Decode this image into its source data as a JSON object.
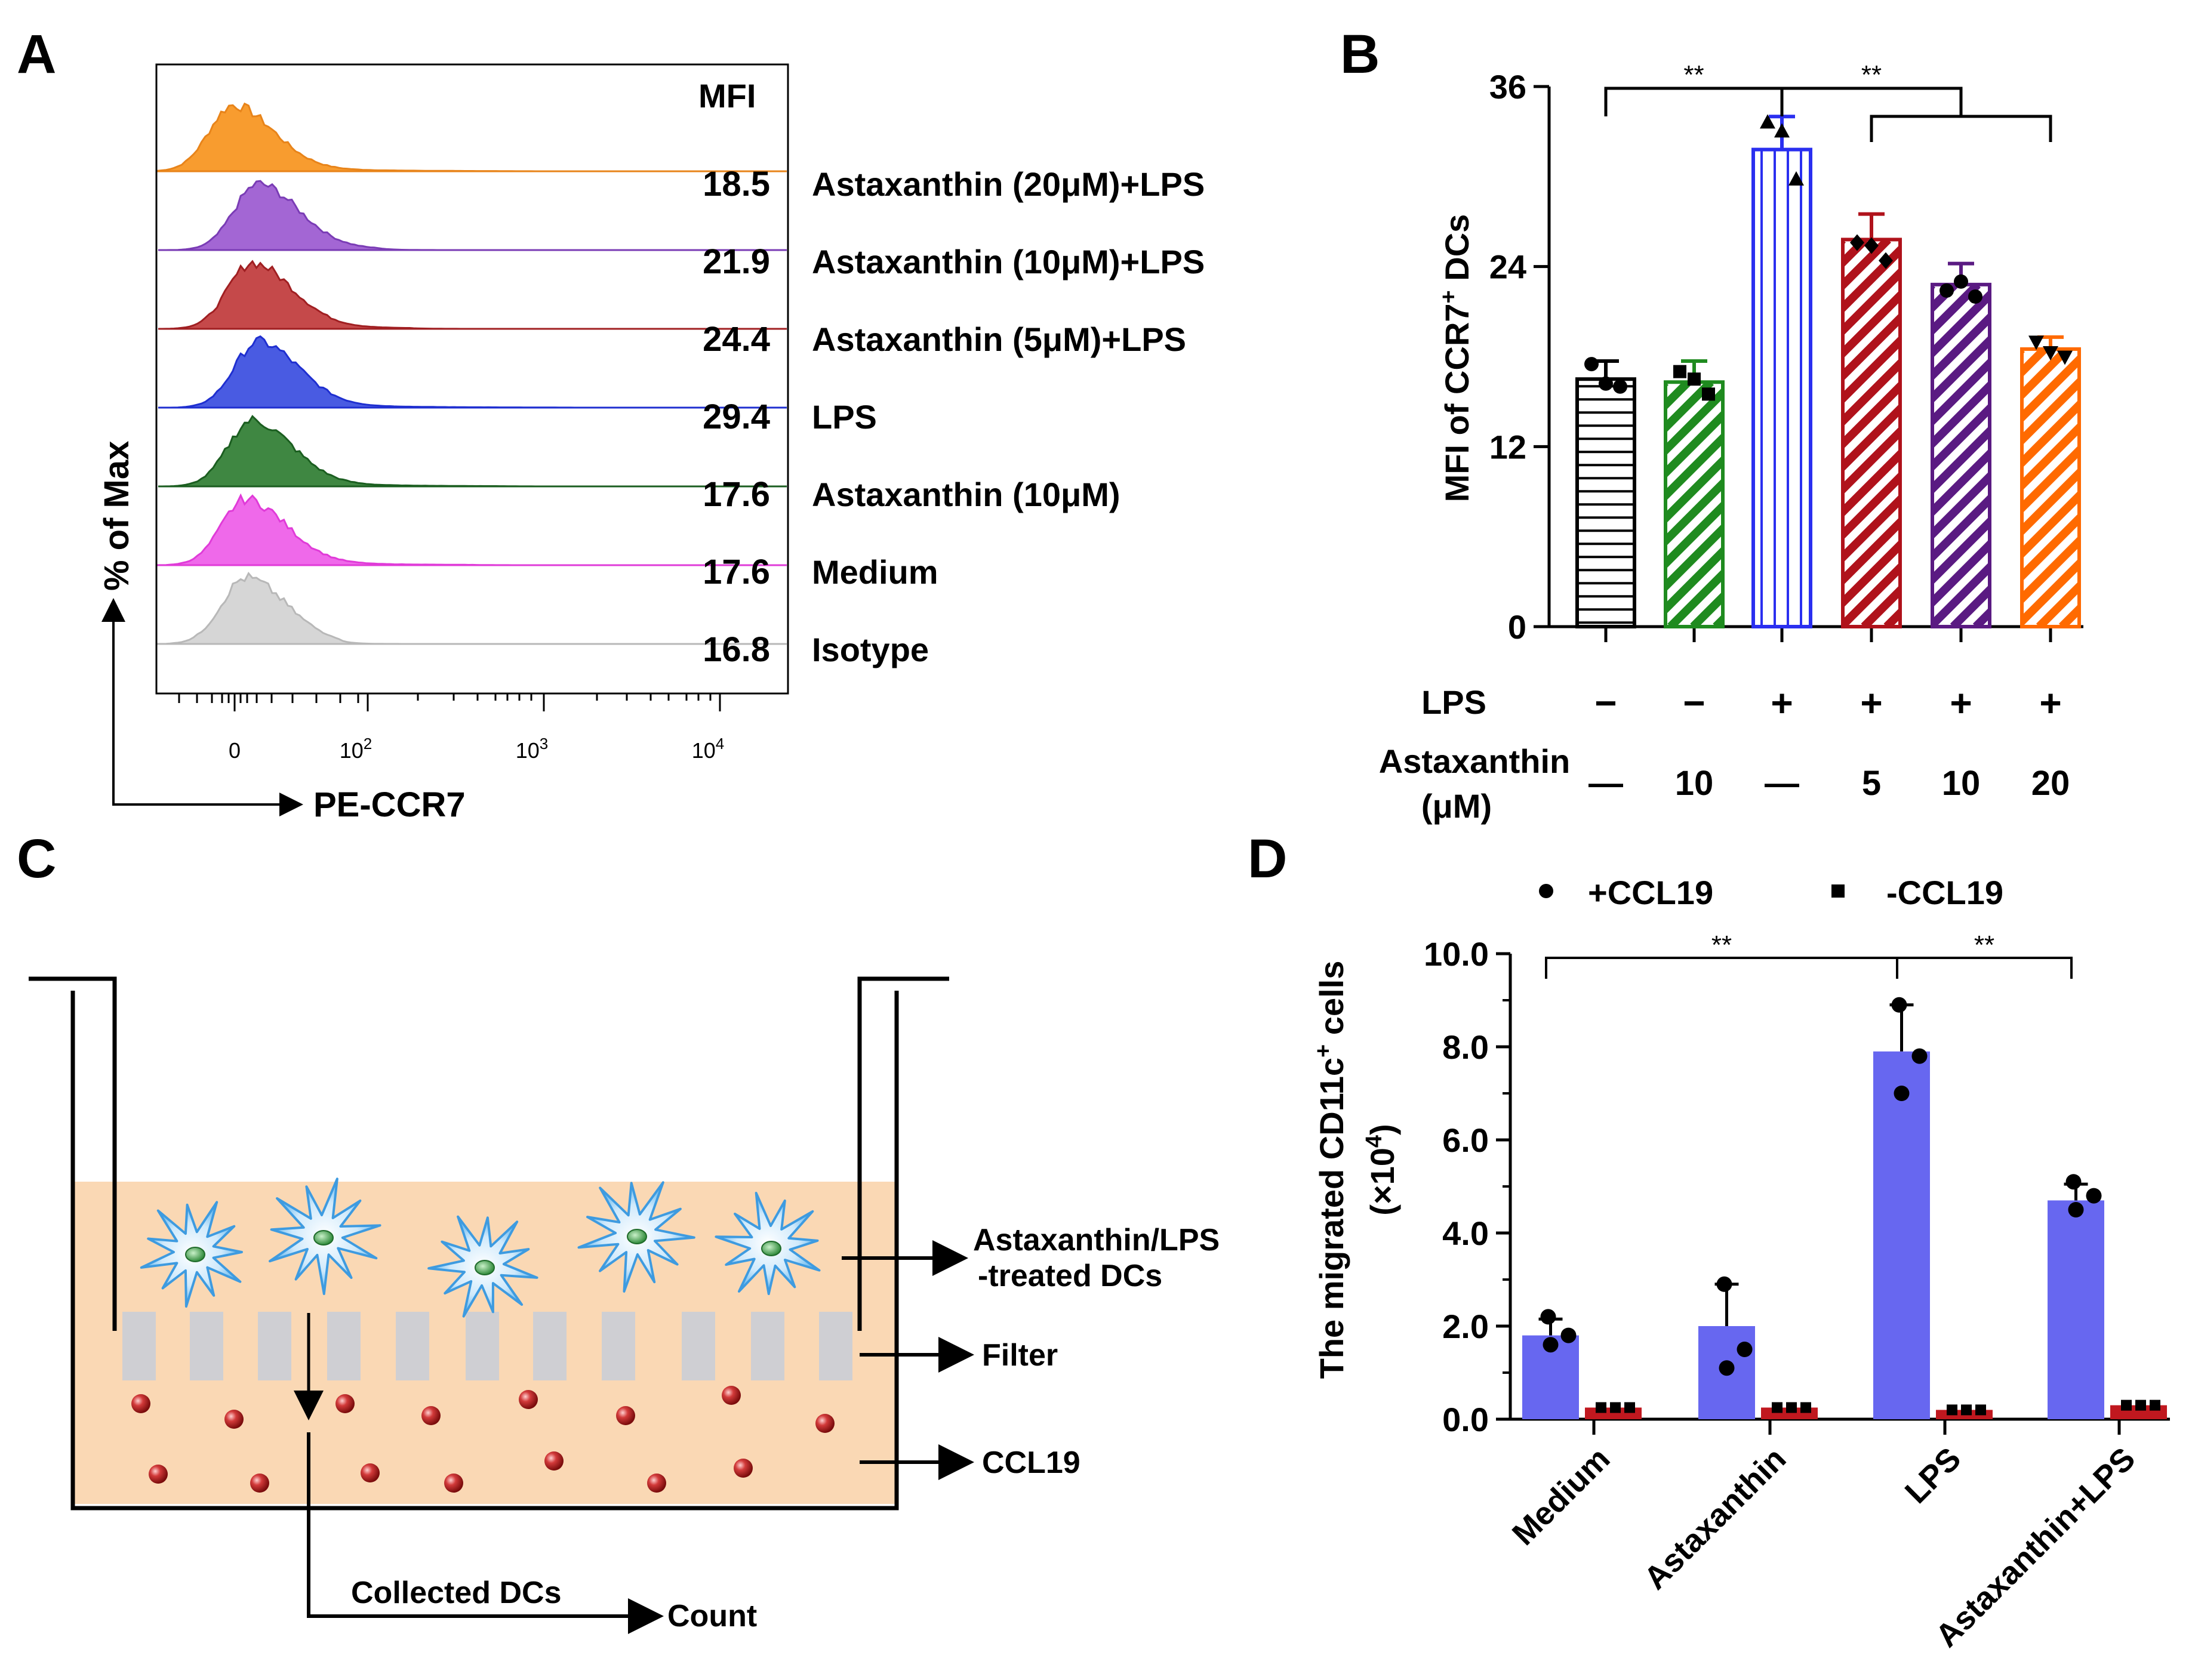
{
  "panel_labels": {
    "a": "A",
    "b": "B",
    "c": "C",
    "d": "D"
  },
  "chart_data": [
    {
      "type": "histogram-overlay",
      "panel": "A",
      "mfi_header": "MFI",
      "xlabel": "PE-CCR7",
      "ylabel": "% of Max",
      "x_ticks": [
        {
          "base": "0",
          "exp": ""
        },
        {
          "base": "10",
          "exp": "2"
        },
        {
          "base": "10",
          "exp": "3"
        },
        {
          "base": "10",
          "exp": "4"
        }
      ],
      "series": [
        {
          "name": "Astaxanthin (20μM)+LPS",
          "mfi": "18.5",
          "color": "#f7941d",
          "line": "#e8841a",
          "peak": 0.12,
          "tail": 0.55
        },
        {
          "name": "Astaxanthin (10μM)+LPS",
          "mfi": "21.9",
          "color": "#9b59d0",
          "line": "#7a3cb5",
          "peak": 0.16,
          "tail": 0.35
        },
        {
          "name": "Astaxanthin (5μM)+LPS",
          "mfi": "24.4",
          "color": "#c0393b",
          "line": "#a01f22",
          "peak": 0.15,
          "tail": 0.4
        },
        {
          "name": "LPS",
          "mfi": "29.4",
          "color": "#3a4de0",
          "line": "#1f2fd0",
          "peak": 0.16,
          "tail": 0.62
        },
        {
          "name": "Astaxanthin (10μM)",
          "mfi": "17.6",
          "color": "#2f7d32",
          "line": "#1b5e20",
          "peak": 0.15,
          "tail": 0.55
        },
        {
          "name": "Medium",
          "mfi": "17.6",
          "color": "#ee5ce8",
          "line": "#e03bd8",
          "peak": 0.14,
          "tail": 0.5
        },
        {
          "name": "Isotype",
          "mfi": "16.8",
          "color": "#d3d3d3",
          "line": "#b8b8b8",
          "peak": 0.14,
          "tail": 0.28
        }
      ]
    },
    {
      "type": "bar",
      "panel": "B",
      "ylabel": "MFI of CCR7",
      "ylabel_sup": "+",
      "ylabel_tail": " DCs",
      "ylim": [
        0,
        36
      ],
      "yticks": [
        0,
        12,
        24,
        36
      ],
      "categories": [
        "Medium",
        "Astaxanthin 10",
        "LPS",
        "LPS+Astaxanthin 5",
        "LPS+Astaxanthin 10",
        "LPS+Astaxanthin 20"
      ],
      "values": [
        16.5,
        16.3,
        31.8,
        25.8,
        22.8,
        18.5
      ],
      "errors": [
        1.2,
        1.4,
        2.2,
        1.7,
        1.4,
        0.8
      ],
      "points": [
        [
          17.5,
          16.2,
          16.0
        ],
        [
          17.0,
          16.5,
          15.5
        ],
        [
          33.6,
          33.0,
          29.8
        ],
        [
          25.6,
          25.4,
          24.4
        ],
        [
          22.4,
          23.0,
          22.0
        ],
        [
          19.0,
          18.3,
          18.0
        ]
      ],
      "marker": [
        "circle",
        "square",
        "triangle",
        "diamond",
        "circle",
        "tridown"
      ],
      "colors": [
        "#000000",
        "#1f8b1f",
        "#2a2ff0",
        "#b0121b",
        "#5a1a82",
        "#ff6a00"
      ],
      "pattern": [
        "hstripe",
        "diag",
        "vstripe",
        "diag",
        "diag",
        "diag"
      ],
      "significance": [
        {
          "label": "**",
          "from": 0,
          "to": 2
        },
        {
          "label": "**",
          "from": 2,
          "to": 4
        }
      ],
      "cond_labels": {
        "lps": "LPS",
        "astax": "Astaxanthin",
        "astax_unit": "(μM)"
      },
      "lps_row": [
        "−",
        "−",
        "+",
        "+",
        "+",
        "+"
      ],
      "astax_row": [
        "—",
        "10",
        "—",
        "5",
        "10",
        "20"
      ]
    },
    {
      "type": "bar",
      "panel": "D",
      "ylabel": "The migrated CD11c",
      "ylabel_sup": "+",
      "ylabel_tail": " cells",
      "ylabel2": "(×10",
      "ylabel2_sup": "4",
      "ylabel2_tail": ")",
      "ylim": [
        0,
        10
      ],
      "yticks": [
        "0.0",
        "2.0",
        "4.0",
        "6.0",
        "8.0",
        "10.0"
      ],
      "categories": [
        "Medium",
        "Astaxanthin",
        "LPS",
        "Astaxanthin+LPS"
      ],
      "legend": [
        {
          "name": "+CCL19",
          "marker": "circle"
        },
        {
          "name": "-CCL19",
          "marker": "square"
        }
      ],
      "series": [
        {
          "name": "+CCL19",
          "color": "#6767f0",
          "values": [
            1.8,
            2.0,
            7.9,
            4.7
          ],
          "errors": [
            0.35,
            0.9,
            1.0,
            0.35
          ],
          "points": [
            [
              2.2,
              1.8,
              1.6
            ],
            [
              2.9,
              1.5,
              1.1
            ],
            [
              8.9,
              7.8,
              7.0
            ],
            [
              5.1,
              4.8,
              4.5
            ]
          ]
        },
        {
          "name": "-CCL19",
          "color": "#c0181f",
          "values": [
            0.25,
            0.25,
            0.2,
            0.3
          ],
          "errors": [
            0,
            0,
            0,
            0
          ],
          "points": [
            [
              0.25,
              0.25,
              0.25
            ],
            [
              0.25,
              0.25,
              0.25
            ],
            [
              0.2,
              0.2,
              0.2
            ],
            [
              0.3,
              0.3,
              0.3
            ]
          ]
        }
      ],
      "significance": [
        {
          "label": "**",
          "from": 0,
          "to": 2
        },
        {
          "label": "**",
          "from": 2,
          "to": 3
        }
      ]
    }
  ],
  "diagram": {
    "labels": {
      "treated_line1": "Astaxanthin/LPS",
      "treated_line2": "-treated DCs",
      "filter": "Filter",
      "ccl19": "CCL19",
      "collected": "Collected DCs",
      "count": "Count"
    },
    "colors": {
      "medium": "#fad8b4",
      "filter": "#cfcfd3",
      "cell": "#63b8ef",
      "nucleus": "#2f9e44",
      "particle": "#b01d1d"
    }
  }
}
